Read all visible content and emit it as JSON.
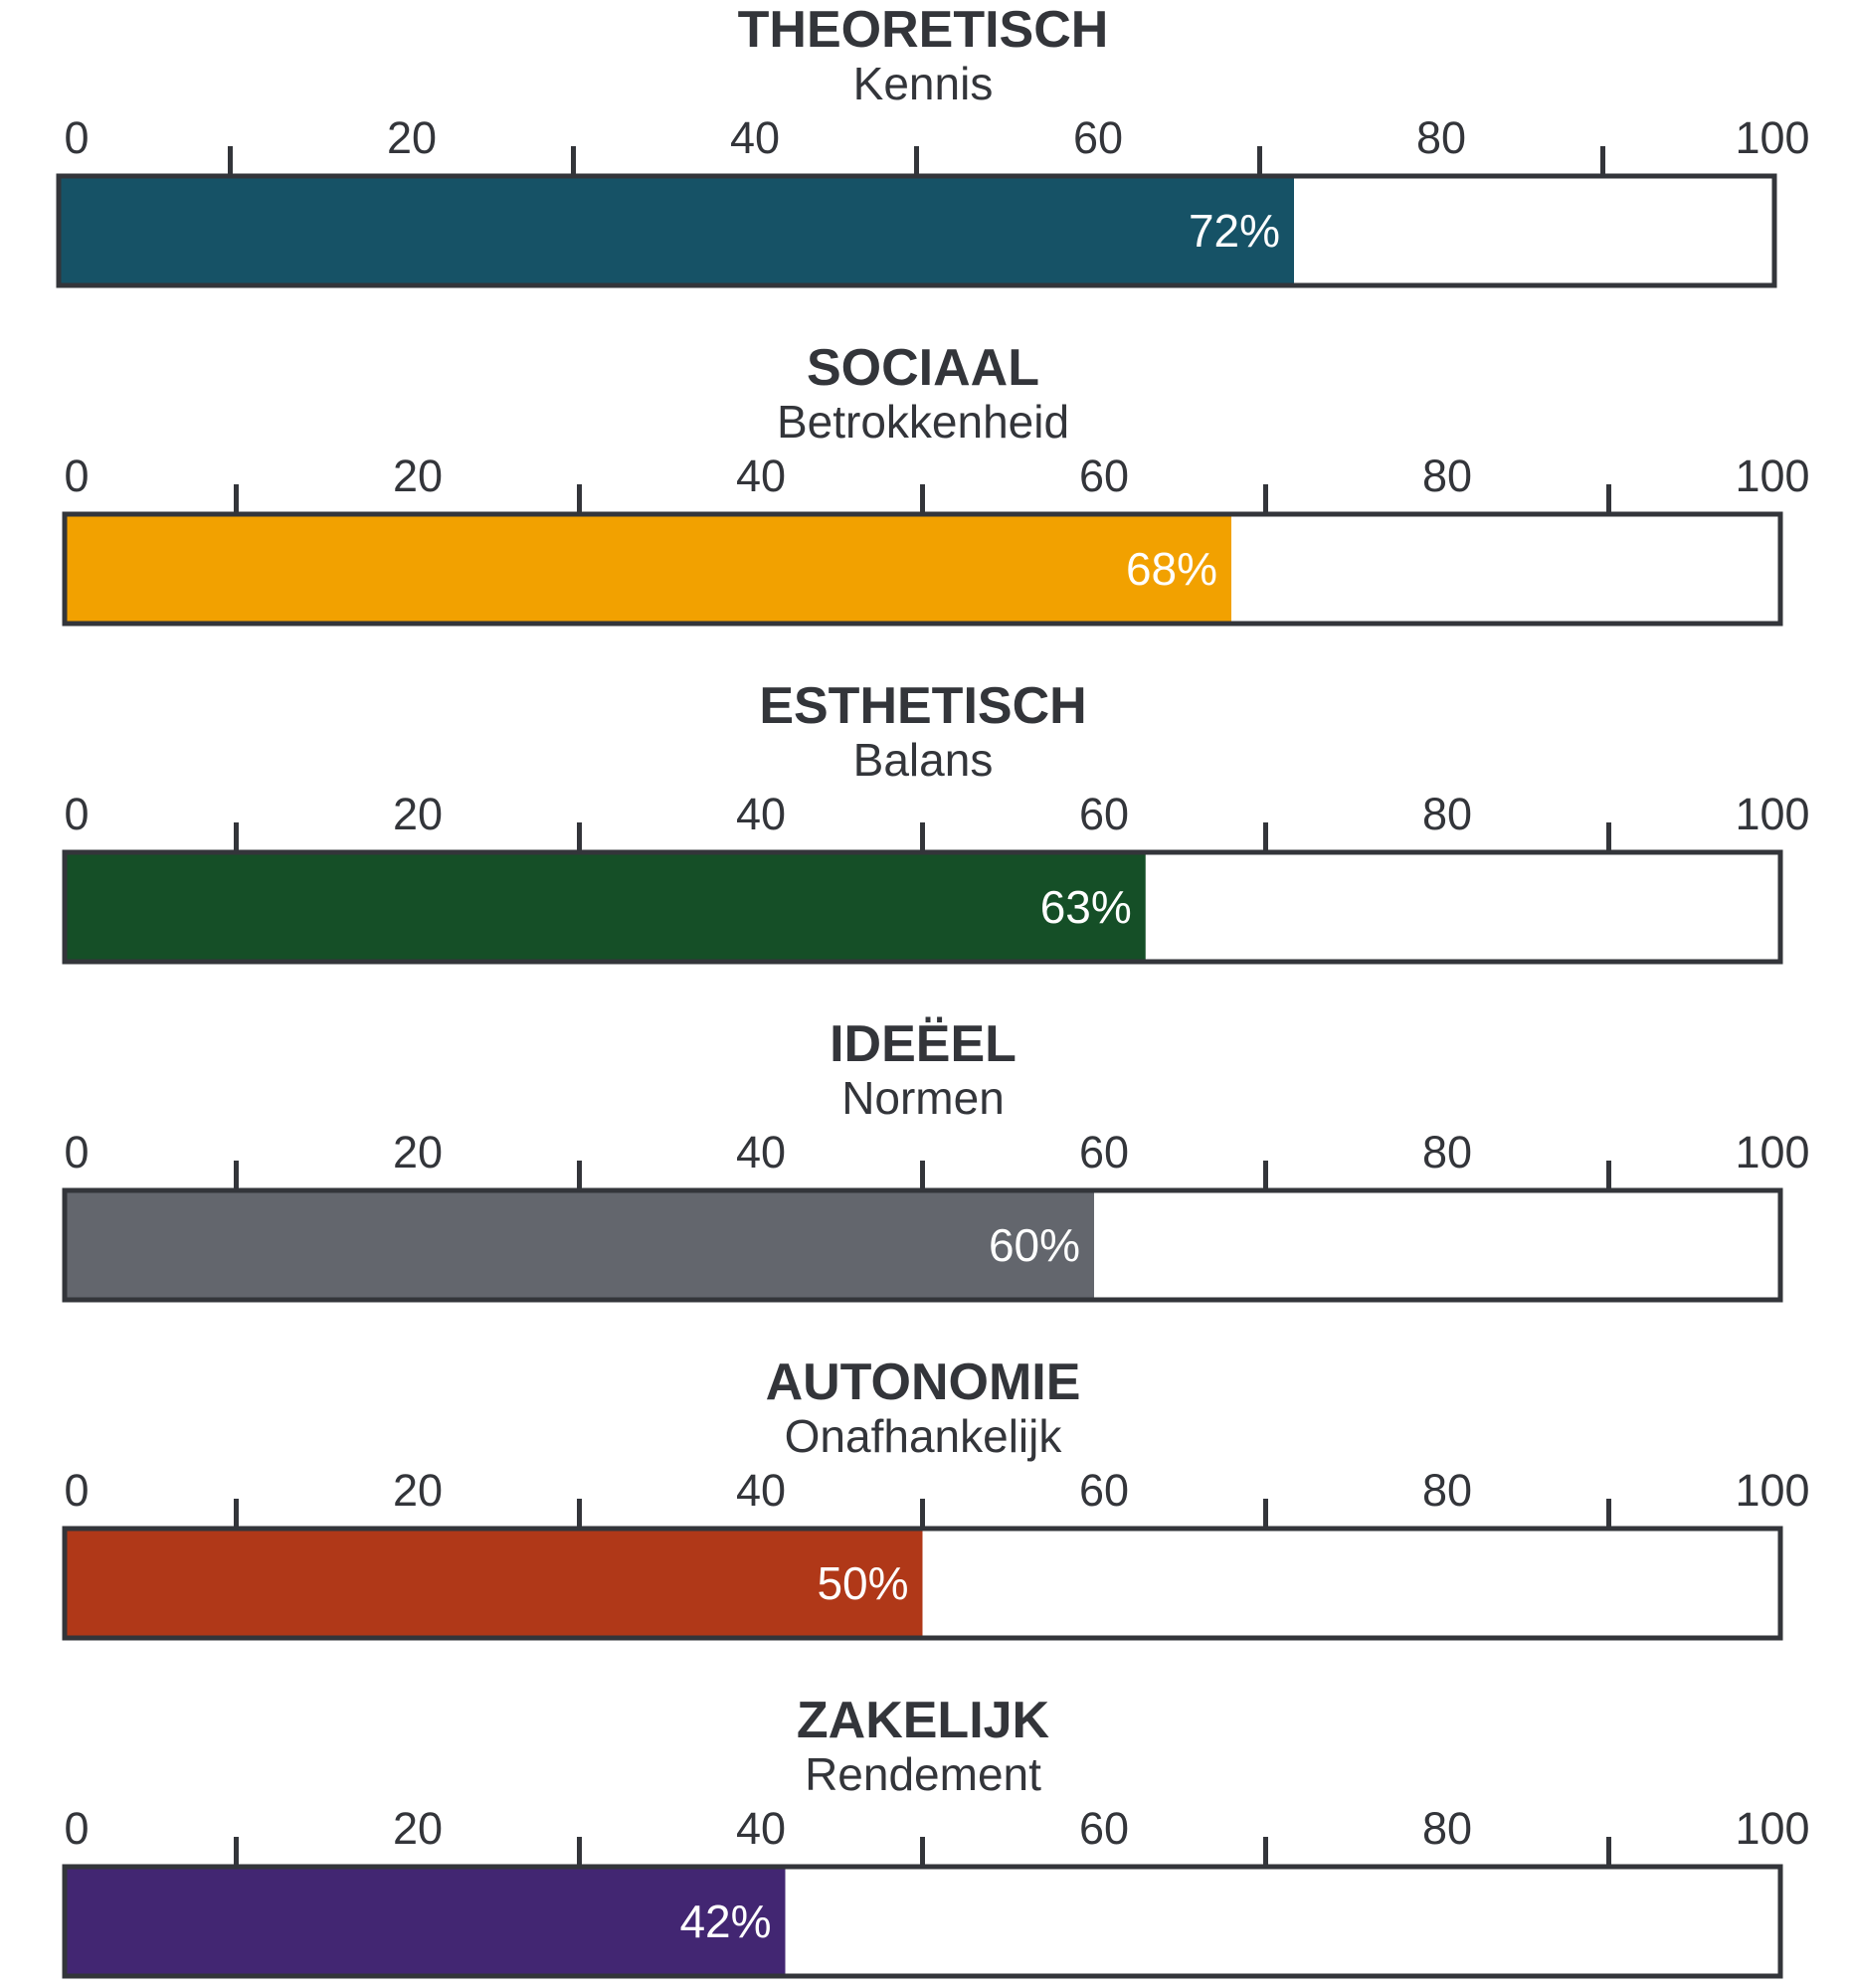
{
  "chart_data": {
    "type": "bar",
    "orientation": "horizontal",
    "xlim": [
      0,
      100
    ],
    "axis_ticks": [
      "0",
      "20",
      "40",
      "60",
      "80",
      "100"
    ],
    "minor_ticks": true,
    "grid": false,
    "legend": "none",
    "panels": [
      {
        "title": "THEORETISCH",
        "subtitle": "Kennis",
        "value": 72,
        "label": "72%",
        "color": "#165266"
      },
      {
        "title": "SOCIAAL",
        "subtitle": "Betrokkenheid",
        "value": 68,
        "label": "68%",
        "color": "#f2a100"
      },
      {
        "title": "ESTHETISCH",
        "subtitle": "Balans",
        "value": 63,
        "label": "63%",
        "color": "#154f27"
      },
      {
        "title": "IDEËEL",
        "subtitle": "Normen",
        "value": 60,
        "label": "60%",
        "color": "#63666d"
      },
      {
        "title": "AUTONOMIE",
        "subtitle": "Onafhankelijk",
        "value": 50,
        "label": "50%",
        "color": "#b03818"
      },
      {
        "title": "ZAKELIJK",
        "subtitle": "Rendement",
        "value": 42,
        "label": "42%",
        "color": "#422672"
      }
    ]
  }
}
